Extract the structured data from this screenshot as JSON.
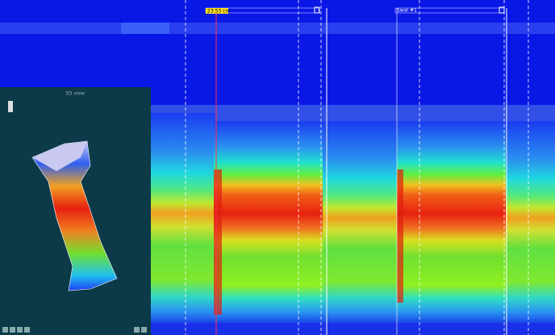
{
  "markers": [
    {
      "label": "23.53 cm"
    },
    {
      "label": "Swal #1"
    }
  ],
  "inset": {
    "title": "3D view"
  }
}
